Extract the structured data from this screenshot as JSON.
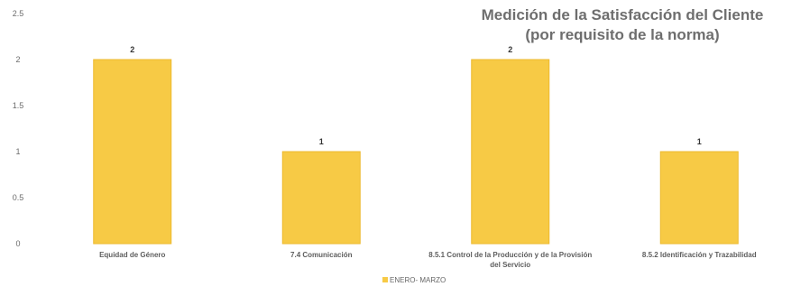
{
  "chart_data": {
    "type": "bar",
    "title": "Medición de la Satisfacción del Cliente",
    "subtitle": "(por requisito de la norma)",
    "categories": [
      "Equidad de Género",
      "7.4 Comunicación",
      "8.5.1 Control de la Producción y de la Provisión del Servicio",
      "8.5.2 Identificación y Trazabilidad"
    ],
    "series": [
      {
        "name": "ENERO- MARZO",
        "values": [
          2,
          1,
          2,
          1
        ]
      }
    ],
    "data_labels": [
      "2",
      "1",
      "2",
      "1"
    ],
    "ylim": [
      0,
      2.5
    ],
    "yticks": [
      "0",
      "0.5",
      "1",
      "1.5",
      "2",
      "2.5"
    ],
    "grid": false,
    "legend_position": "bottom",
    "colors": {
      "bar": "#F7CA45",
      "bar_edge": "#EDB92E",
      "text": "#6e6e6e"
    }
  }
}
